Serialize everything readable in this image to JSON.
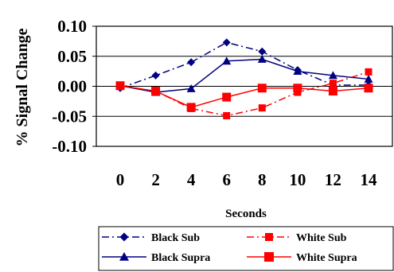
{
  "chart_data": {
    "type": "line",
    "title": "",
    "xlabel": "Seconds",
    "ylabel": "% Signal Change",
    "x": [
      0,
      2,
      4,
      6,
      8,
      10,
      12,
      14
    ],
    "x_tick_labels": [
      "0",
      "2",
      "4",
      "6",
      "8",
      "10",
      "12",
      "14"
    ],
    "ylim": [
      -0.1,
      0.1
    ],
    "y_ticks": [
      -0.1,
      -0.05,
      0.0,
      0.05,
      0.1
    ],
    "y_tick_labels": [
      "-0.10",
      "-0.05",
      "0.00",
      "0.05",
      "0.10"
    ],
    "grid": "horizontal",
    "legend_position": "bottom",
    "series": [
      {
        "name": "Black Sub",
        "color": "#000080",
        "line_style": "dash-dot",
        "marker": "diamond",
        "values": [
          -0.003,
          0.018,
          0.04,
          0.073,
          0.058,
          0.027,
          0.002,
          0.002
        ]
      },
      {
        "name": "White Sub",
        "color": "#ff0000",
        "line_style": "dash-dot",
        "marker": "square",
        "values": [
          0.001,
          -0.008,
          -0.037,
          -0.049,
          -0.036,
          -0.01,
          0.005,
          0.024
        ]
      },
      {
        "name": "Black Supra",
        "color": "#000080",
        "line_style": "solid",
        "marker": "triangle",
        "values": [
          0.001,
          -0.01,
          -0.004,
          0.042,
          0.045,
          0.025,
          0.018,
          0.012
        ]
      },
      {
        "name": "White Supra",
        "color": "#ff0000",
        "line_style": "solid",
        "marker": "square",
        "values": [
          0.001,
          -0.008,
          -0.035,
          -0.018,
          -0.003,
          -0.003,
          -0.008,
          -0.003
        ]
      }
    ]
  }
}
